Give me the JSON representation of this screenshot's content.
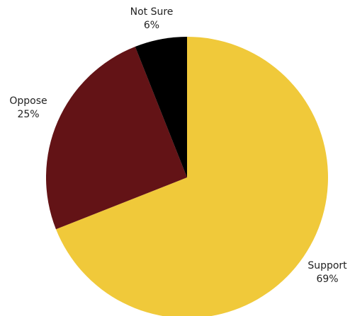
{
  "chart_data": {
    "type": "pie",
    "slices": [
      {
        "label": "Support",
        "value": 69,
        "value_label": "69%",
        "color": "#f0c93a"
      },
      {
        "label": "Oppose",
        "value": 25,
        "value_label": "25%",
        "color": "#631316"
      },
      {
        "label": "Not Sure",
        "value": 6,
        "value_label": "6%",
        "color": "#000000"
      }
    ],
    "start": "top",
    "direction": "clockwise",
    "legend": "none"
  }
}
